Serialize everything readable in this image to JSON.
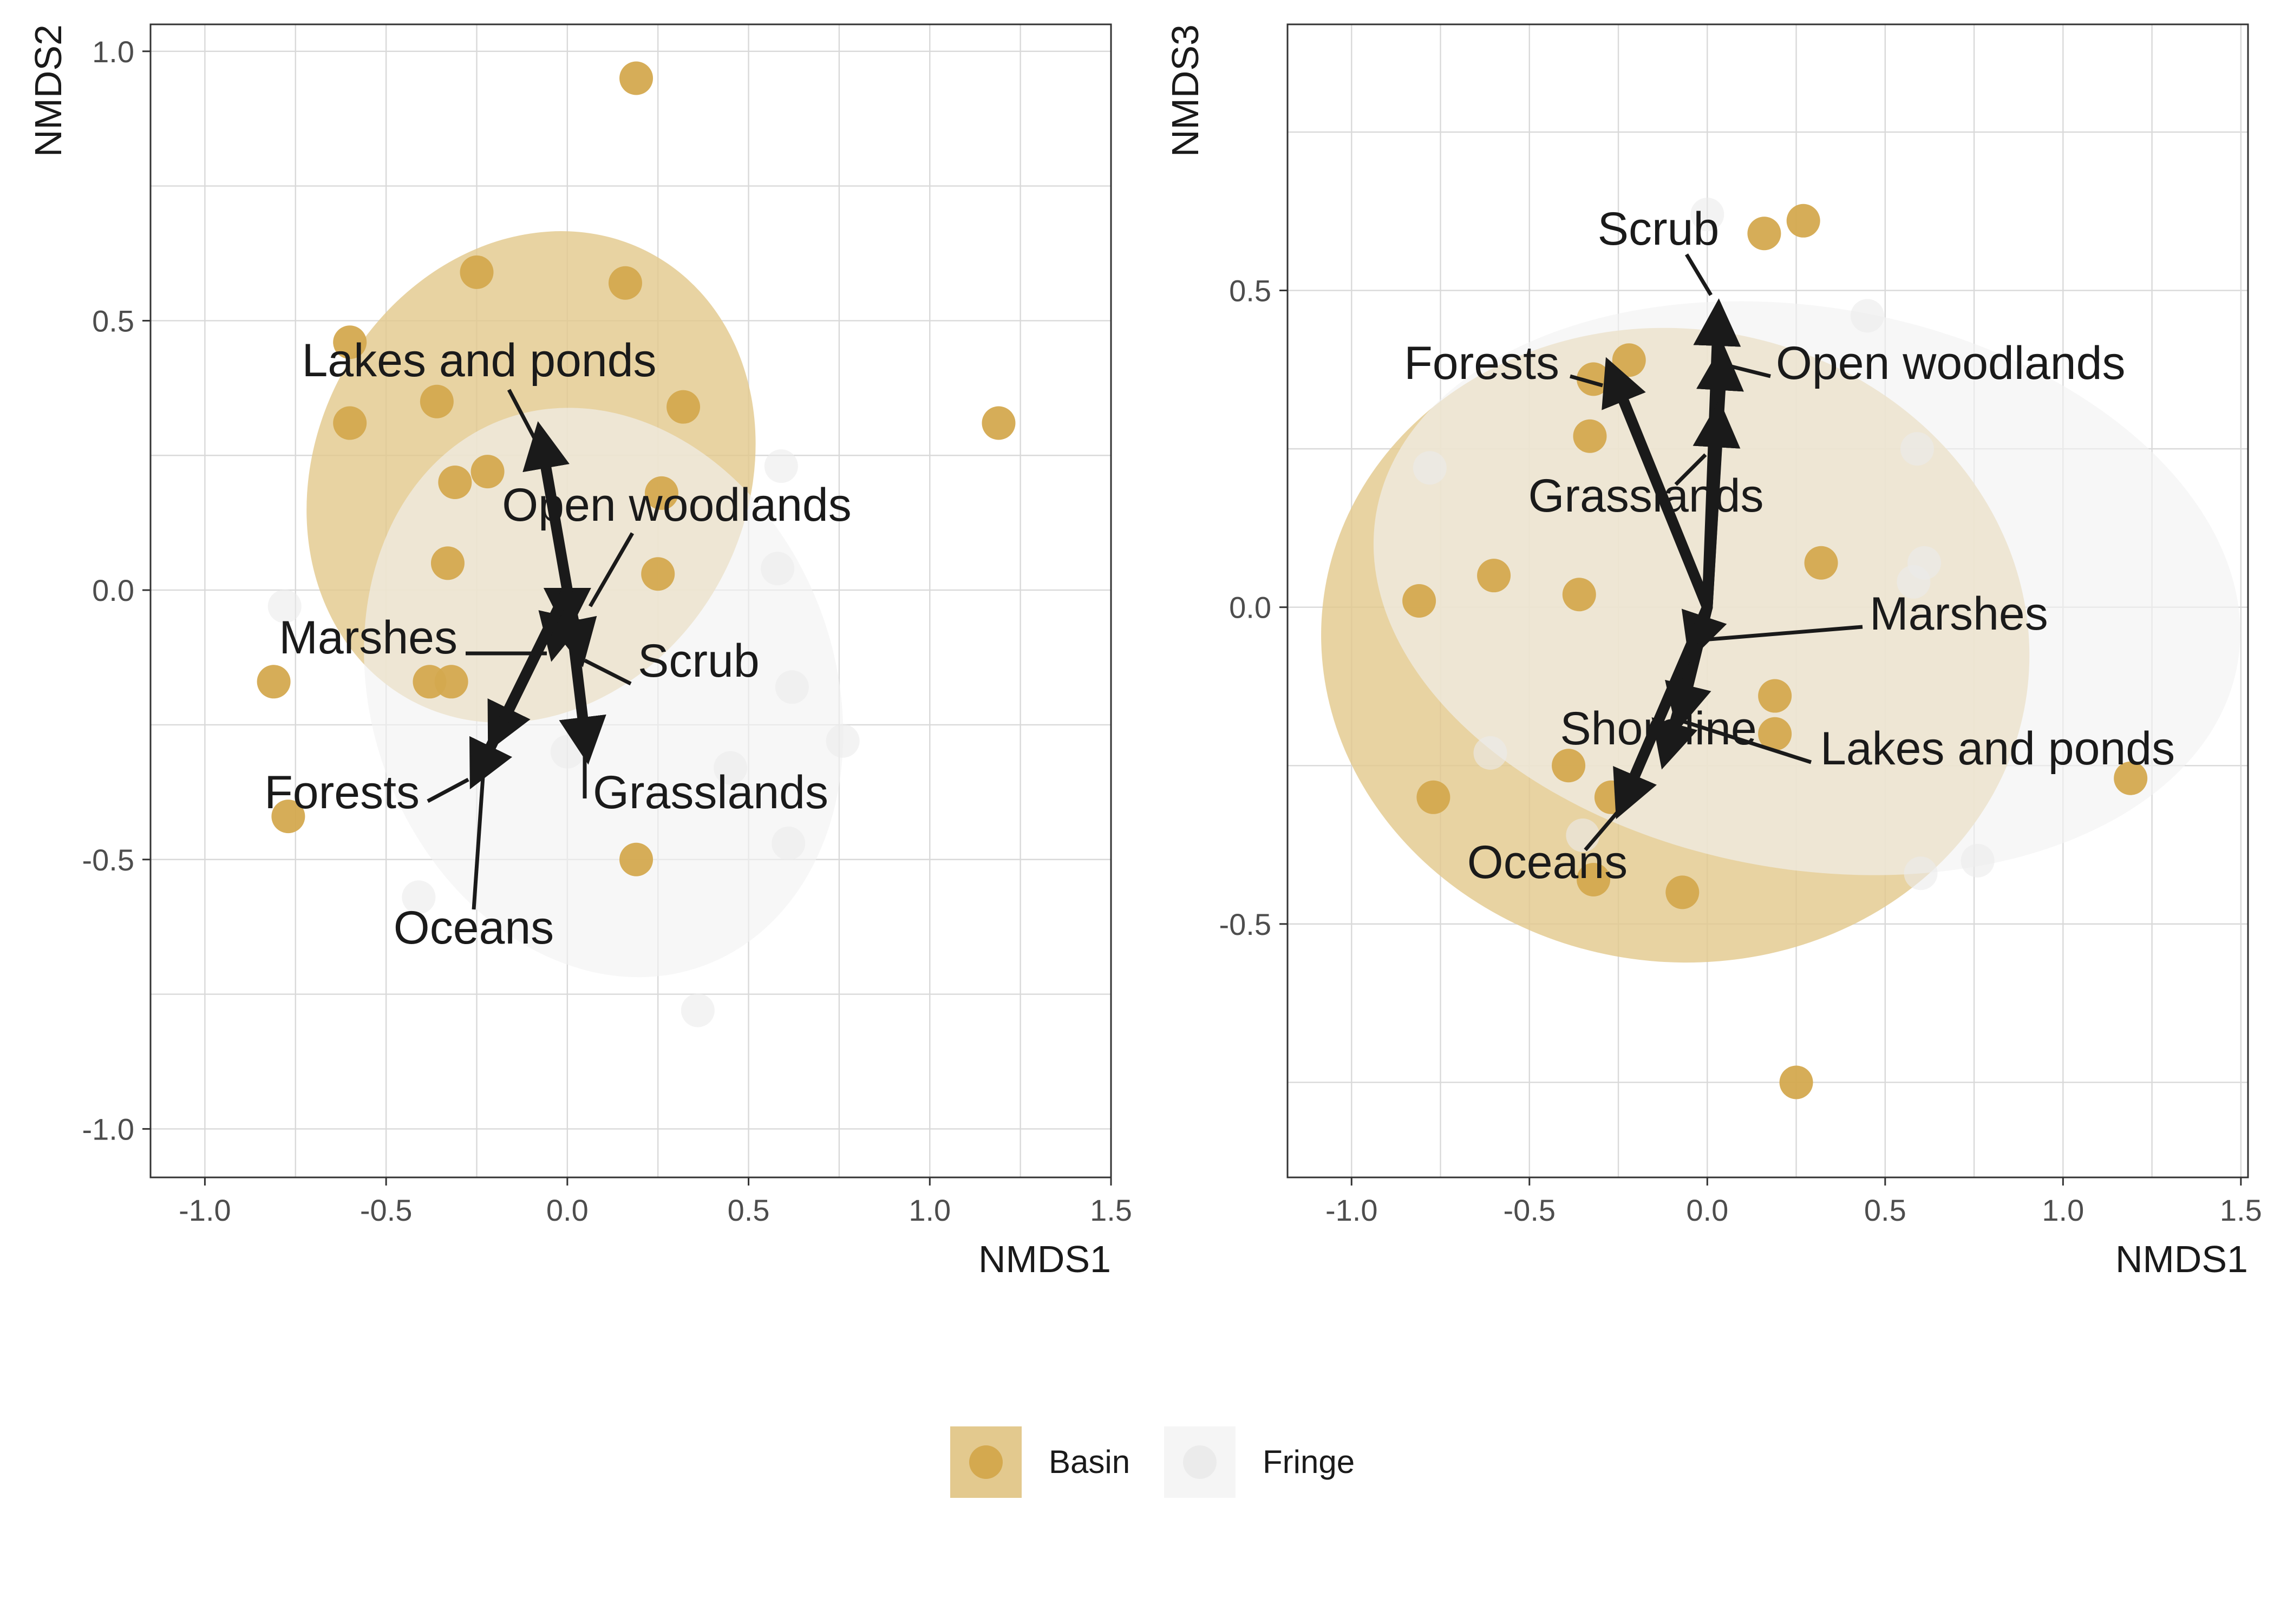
{
  "chart_data": [
    {
      "type": "scatter",
      "xlabel": "NMDS1",
      "ylabel": "NMDS2",
      "xlim": [
        -1.15,
        1.5
      ],
      "ylim": [
        -1.09,
        1.05
      ],
      "xticks": [
        -1.0,
        -0.5,
        0.0,
        0.5,
        1.0,
        1.5
      ],
      "xtick_labels": [
        "-1.0",
        "-0.5",
        "0.0",
        "0.5",
        "1.0",
        "1.5"
      ],
      "yticks": [
        -1.0,
        -0.5,
        0.0,
        0.5,
        1.0
      ],
      "ytick_labels": [
        "-1.0",
        "-0.5",
        "0.0",
        "0.5",
        "1.0"
      ],
      "grid": true,
      "series": [
        {
          "name": "Basin",
          "color": "#D4A94F",
          "points": [
            [
              0.19,
              0.95
            ],
            [
              -0.25,
              0.59
            ],
            [
              0.16,
              0.57
            ],
            [
              -0.6,
              0.31
            ],
            [
              1.19,
              0.31
            ],
            [
              0.19,
              -0.5
            ],
            [
              -0.6,
              0.46
            ],
            [
              -0.36,
              0.35
            ],
            [
              0.32,
              0.34
            ],
            [
              -0.31,
              0.2
            ],
            [
              -0.22,
              0.22
            ],
            [
              0.26,
              0.18
            ],
            [
              -0.33,
              0.05
            ],
            [
              0.25,
              0.03
            ],
            [
              -0.81,
              -0.17
            ],
            [
              -0.38,
              -0.17
            ],
            [
              -0.32,
              -0.17
            ],
            [
              -0.77,
              -0.42
            ]
          ]
        },
        {
          "name": "Fringe",
          "color": "#EBEBEB",
          "points": [
            [
              0.59,
              0.23
            ],
            [
              0.58,
              0.04
            ],
            [
              -0.78,
              -0.03
            ],
            [
              0.62,
              -0.18
            ],
            [
              0.76,
              -0.28
            ],
            [
              0.45,
              -0.33
            ],
            [
              0.61,
              -0.47
            ],
            [
              -0.41,
              -0.57
            ],
            [
              0.36,
              -0.78
            ],
            [
              0.0,
              -0.3
            ]
          ]
        }
      ],
      "ellipses": [
        {
          "group": "Basin",
          "cx": -0.1,
          "cy": 0.21,
          "rx": 0.7,
          "ry": 0.4,
          "angle_deg": 62
        },
        {
          "group": "Fringe",
          "cx": 0.1,
          "cy": -0.19,
          "rx": 0.64,
          "ry": 0.54,
          "angle_deg": 20
        }
      ],
      "vectors": [
        {
          "label": "Lakes and ponds",
          "x": -0.07,
          "y": 0.27
        },
        {
          "label": "Open woodlands",
          "x": 0.0,
          "y": -0.04
        },
        {
          "label": "Marshes",
          "x": -0.03,
          "y": -0.09
        },
        {
          "label": "Scrub",
          "x": 0.03,
          "y": -0.1
        },
        {
          "label": "Forests",
          "x": -0.19,
          "y": -0.26
        },
        {
          "label": "Grasslands",
          "x": 0.05,
          "y": -0.28
        },
        {
          "label": "Oceans",
          "x": -0.24,
          "y": -0.33
        }
      ]
    },
    {
      "type": "scatter",
      "xlabel": "NMDS1",
      "ylabel": "NMDS3",
      "xlim": [
        -1.18,
        1.52
      ],
      "ylim": [
        -0.9,
        0.92
      ],
      "xticks": [
        -1.0,
        -0.5,
        0.0,
        0.5,
        1.0,
        1.5
      ],
      "xtick_labels": [
        "-1.0",
        "-0.5",
        "0.0",
        "0.5",
        "1.0",
        "1.5"
      ],
      "yticks": [
        -0.5,
        0.0,
        0.5
      ],
      "ytick_labels": [
        "-0.5",
        "0.0",
        "0.5"
      ],
      "grid": true,
      "series": [
        {
          "name": "Basin",
          "color": "#D4A94F",
          "points": [
            [
              0.25,
              -0.75
            ],
            [
              1.19,
              -0.27
            ],
            [
              0.27,
              0.61
            ],
            [
              0.16,
              0.59
            ],
            [
              -0.22,
              0.39
            ],
            [
              -0.32,
              0.36
            ],
            [
              -0.33,
              0.27
            ],
            [
              -0.81,
              0.01
            ],
            [
              -0.6,
              0.05
            ],
            [
              -0.36,
              0.02
            ],
            [
              0.32,
              0.07
            ],
            [
              0.19,
              -0.14
            ],
            [
              0.19,
              -0.2
            ],
            [
              -0.39,
              -0.25
            ],
            [
              -0.27,
              -0.3
            ],
            [
              -0.77,
              -0.3
            ],
            [
              -0.32,
              -0.43
            ],
            [
              -0.07,
              -0.45
            ]
          ]
        },
        {
          "name": "Fringe",
          "color": "#EBEBEB",
          "points": [
            [
              0.59,
              0.25
            ],
            [
              -0.78,
              0.22
            ],
            [
              0.61,
              0.07
            ],
            [
              0.58,
              0.04
            ],
            [
              0.45,
              0.46
            ],
            [
              -0.61,
              -0.23
            ],
            [
              0.6,
              -0.42
            ],
            [
              0.76,
              -0.4
            ],
            [
              -0.35,
              -0.36
            ],
            [
              0.0,
              0.62
            ]
          ]
        }
      ],
      "ellipses": [
        {
          "group": "Basin",
          "cx": -0.09,
          "cy": -0.06,
          "rx": 0.89,
          "ry": 0.56,
          "angle_deg": 82
        },
        {
          "group": "Fringe",
          "cx": 0.28,
          "cy": 0.03,
          "rx": 0.79,
          "ry": 0.69,
          "angle_deg": 80
        }
      ],
      "vectors": [
        {
          "label": "Scrub",
          "x": 0.03,
          "y": 0.45
        },
        {
          "label": "Open woodlands",
          "x": 0.04,
          "y": 0.38
        },
        {
          "label": "Forests",
          "x": -0.26,
          "y": 0.36
        },
        {
          "label": "Grasslands",
          "x": 0.03,
          "y": 0.29
        },
        {
          "label": "Marshes",
          "x": -0.03,
          "y": -0.05
        },
        {
          "label": "Lakes and ponds",
          "x": -0.07,
          "y": -0.16
        },
        {
          "label": "Shoreline",
          "x": -0.11,
          "y": -0.22
        },
        {
          "label": "Oceans",
          "x": -0.23,
          "y": -0.3
        }
      ]
    }
  ],
  "legend": {
    "position": "bottom",
    "items": [
      {
        "label": "Basin",
        "color": "#D4A94F"
      },
      {
        "label": "Fringe",
        "color": "#EBEBEB"
      }
    ]
  },
  "colors": {
    "basin_fill": "#E3C98E",
    "fringe_fill": "#F2F2F2",
    "arrow": "#1A1A1A",
    "grid": "#D9D9D9"
  }
}
